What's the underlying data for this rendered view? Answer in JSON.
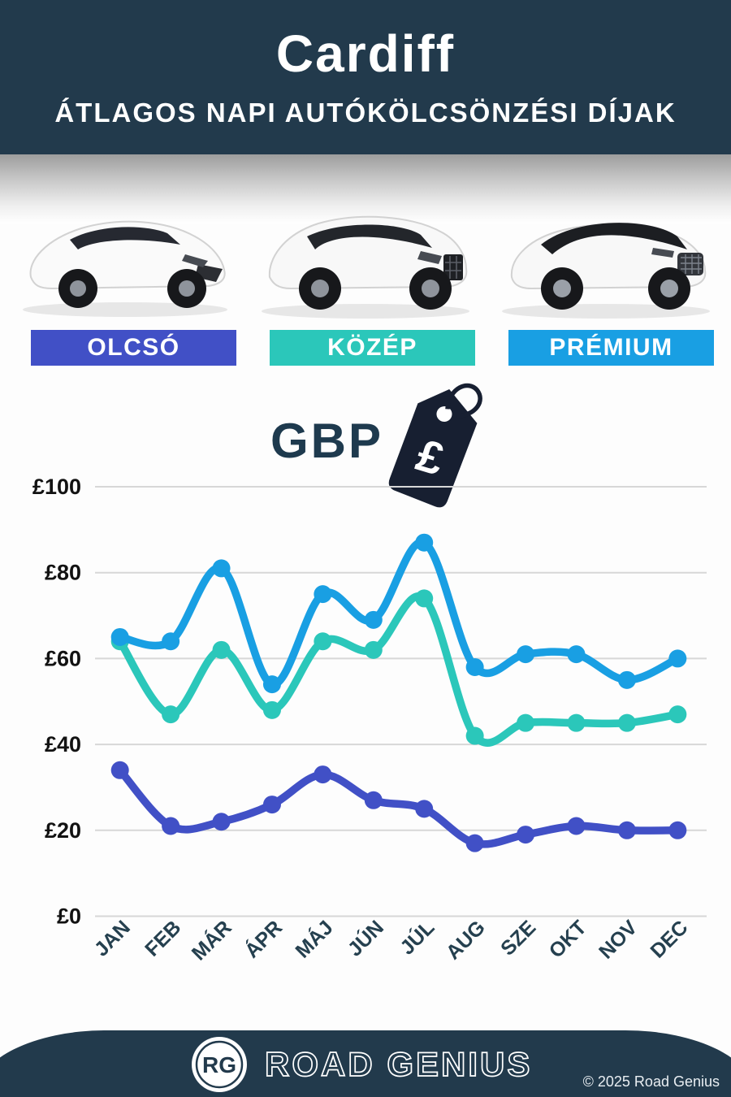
{
  "header": {
    "title": "Cardiff",
    "subtitle": "ÁTLAGOS NAPI AUTÓKÖLCSÖNZÉSI DÍJAK"
  },
  "categories": [
    {
      "label": "OLCSÓ",
      "color": "#4150c6"
    },
    {
      "label": "KÖZÉP",
      "color": "#2bc7ba"
    },
    {
      "label": "PRÉMIUM",
      "color": "#199fe3"
    }
  ],
  "currency": {
    "label": "GBP",
    "symbol": "£"
  },
  "chart_data": {
    "type": "line",
    "title": "Átlagos napi autókölcsönzési díjak Cardiffban (GBP)",
    "categories": [
      "JAN",
      "FEB",
      "MÁR",
      "ÁPR",
      "MÁJ",
      "JÚN",
      "JÚL",
      "AUG",
      "SZE",
      "OKT",
      "NOV",
      "DEC"
    ],
    "series": [
      {
        "name": "PRÉMIUM",
        "color": "#199fe3",
        "values": [
          65,
          64,
          81,
          54,
          75,
          69,
          87,
          58,
          61,
          61,
          55,
          60
        ]
      },
      {
        "name": "KÖZÉP",
        "color": "#2bc7ba",
        "values": [
          64,
          47,
          62,
          48,
          64,
          62,
          74,
          42,
          45,
          45,
          45,
          47
        ]
      },
      {
        "name": "OLCSÓ",
        "color": "#4150c6",
        "values": [
          34,
          21,
          22,
          26,
          33,
          27,
          25,
          17,
          19,
          21,
          20,
          20
        ]
      }
    ],
    "ylabel_prefix": "£",
    "yticks": [
      0,
      20,
      40,
      60,
      80,
      100
    ],
    "ylim": [
      0,
      100
    ],
    "grid": true,
    "legend_position": "category-bars-above-chart"
  },
  "footer": {
    "logo_initials": "RG",
    "brand": "ROAD GENIUS",
    "copyright": "© 2025 Road Genius"
  }
}
